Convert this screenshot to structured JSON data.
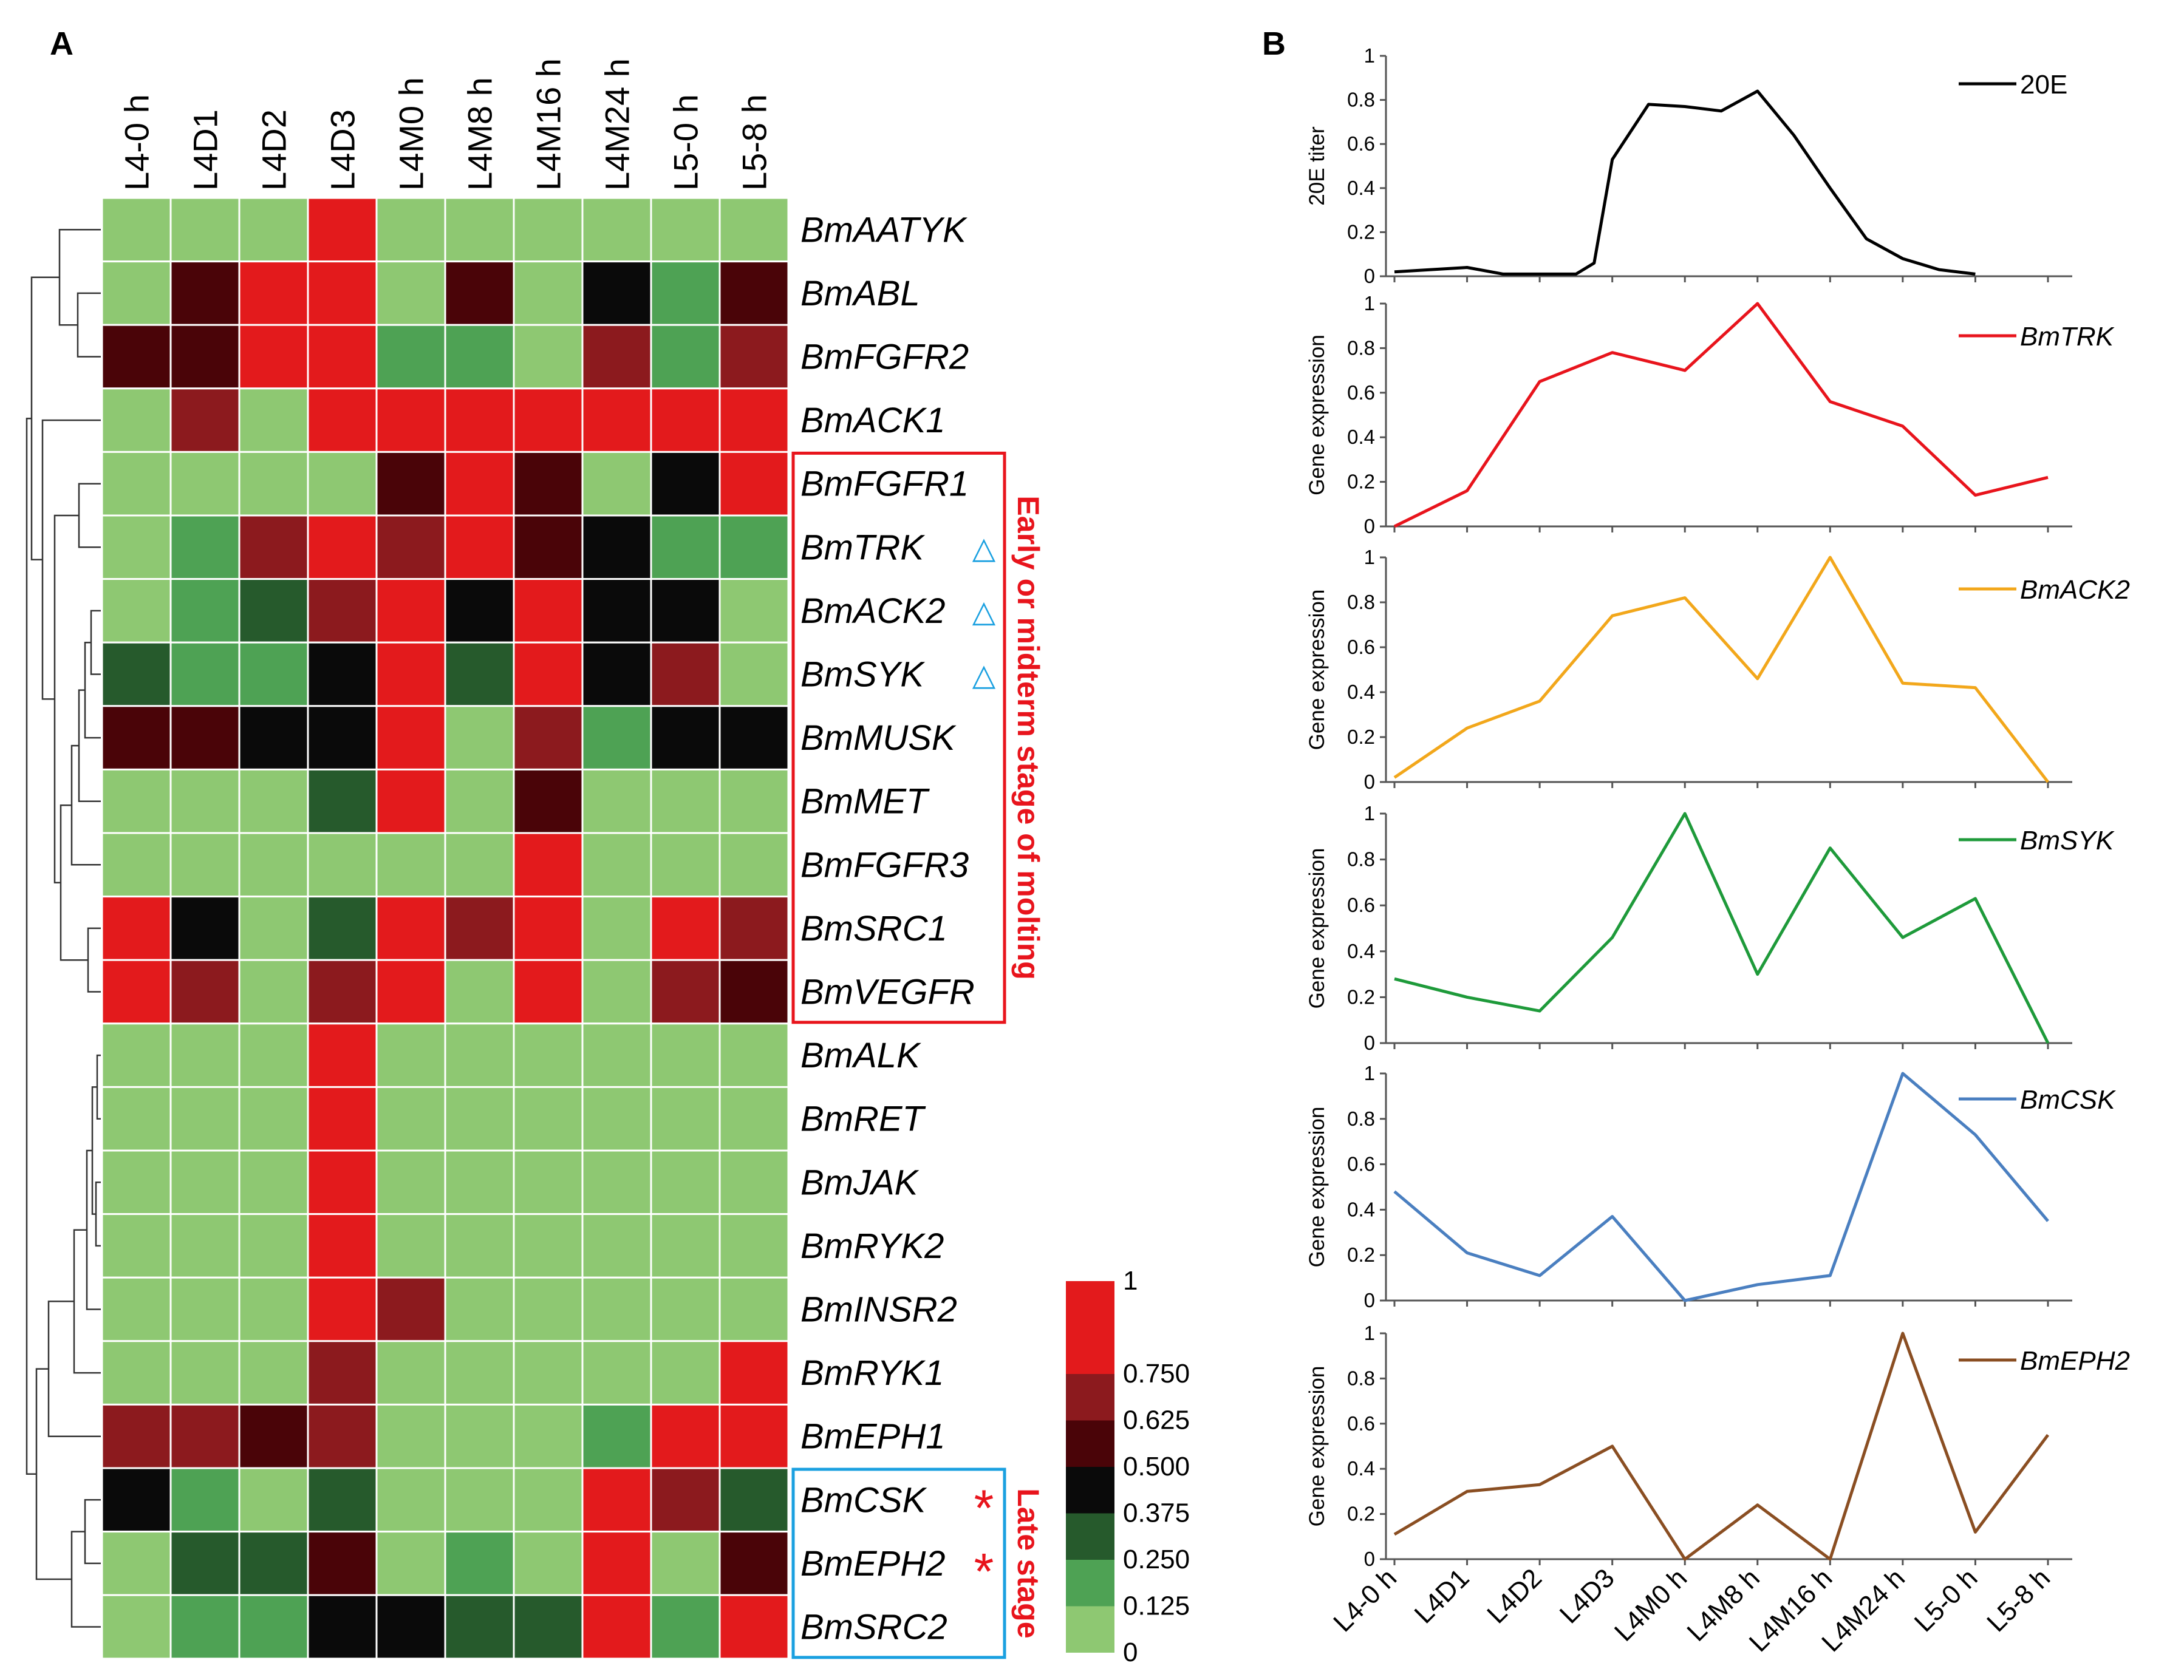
{
  "figure": {
    "panel_a_label": "A",
    "panel_b_label": "B"
  },
  "chart_data": [
    {
      "type": "heatmap",
      "title": "",
      "columns": [
        "L4-0 h",
        "L4D1",
        "L4D2",
        "L4D3",
        "L4M0 h",
        "L4M8 h",
        "L4M16 h",
        "L4M24 h",
        "L5-0 h",
        "L5-8 h"
      ],
      "rows": [
        "BmAATYK",
        "BmABL",
        "BmFGFR2",
        "BmACK1",
        "BmFGFR1",
        "BmTRK",
        "BmACK2",
        "BmSYK",
        "BmMUSK",
        "BmMET",
        "BmFGFR3",
        "BmSRC1",
        "BmVEGFR",
        "BmALK",
        "BmRET",
        "BmJAK",
        "BmRYK2",
        "BmINSR2",
        "BmRYK1",
        "BmEPH1",
        "BmCSK",
        "BmEPH2",
        "BmSRC2"
      ],
      "values": [
        [
          0.0,
          0.0,
          0.0,
          1.0,
          0.0,
          0.0,
          0.0,
          0.0,
          0.0,
          0.0
        ],
        [
          0.0,
          0.6,
          1.0,
          1.0,
          0.0,
          0.6,
          0.0,
          0.5,
          0.15,
          0.6
        ],
        [
          0.6,
          0.6,
          1.0,
          1.0,
          0.15,
          0.15,
          0.0,
          0.7,
          0.15,
          0.7
        ],
        [
          0.0,
          0.7,
          0.0,
          1.0,
          1.0,
          1.0,
          1.0,
          1.0,
          1.0,
          1.0
        ],
        [
          0.0,
          0.0,
          0.0,
          0.0,
          0.6,
          1.0,
          0.6,
          0.0,
          0.5,
          1.0
        ],
        [
          0.0,
          0.15,
          0.7,
          1.0,
          0.7,
          1.0,
          0.6,
          0.5,
          0.15,
          0.15
        ],
        [
          0.0,
          0.15,
          0.3,
          0.7,
          1.0,
          0.5,
          1.0,
          0.5,
          0.5,
          0.0
        ],
        [
          0.3,
          0.15,
          0.15,
          0.5,
          1.0,
          0.3,
          1.0,
          0.5,
          0.7,
          0.0
        ],
        [
          0.6,
          0.6,
          0.5,
          0.5,
          1.0,
          0.0,
          0.7,
          0.15,
          0.5,
          0.5
        ],
        [
          0.0,
          0.0,
          0.0,
          0.3,
          1.0,
          0.0,
          0.6,
          0.0,
          0.0,
          0.0
        ],
        [
          0.0,
          0.0,
          0.0,
          0.0,
          0.0,
          0.0,
          1.0,
          0.0,
          0.0,
          0.0
        ],
        [
          1.0,
          0.5,
          0.0,
          0.3,
          1.0,
          0.7,
          1.0,
          0.0,
          1.0,
          0.7
        ],
        [
          1.0,
          0.7,
          0.0,
          0.7,
          1.0,
          0.0,
          1.0,
          0.0,
          0.7,
          0.6
        ],
        [
          0.0,
          0.0,
          0.0,
          1.0,
          0.0,
          0.0,
          0.0,
          0.0,
          0.0,
          0.0
        ],
        [
          0.0,
          0.0,
          0.0,
          1.0,
          0.0,
          0.0,
          0.0,
          0.0,
          0.0,
          0.0
        ],
        [
          0.0,
          0.0,
          0.0,
          1.0,
          0.0,
          0.0,
          0.0,
          0.0,
          0.0,
          0.0
        ],
        [
          0.0,
          0.0,
          0.0,
          1.0,
          0.0,
          0.0,
          0.0,
          0.0,
          0.0,
          0.0
        ],
        [
          0.0,
          0.0,
          0.0,
          1.0,
          0.7,
          0.0,
          0.0,
          0.0,
          0.0,
          0.0
        ],
        [
          0.0,
          0.0,
          0.0,
          0.7,
          0.0,
          0.0,
          0.0,
          0.0,
          0.0,
          1.0
        ],
        [
          0.7,
          0.7,
          0.6,
          0.7,
          0.0,
          0.0,
          0.0,
          0.15,
          1.0,
          1.0
        ],
        [
          0.5,
          0.15,
          0.0,
          0.3,
          0.0,
          0.0,
          0.0,
          1.0,
          0.7,
          0.3
        ],
        [
          0.0,
          0.3,
          0.3,
          0.6,
          0.0,
          0.15,
          0.0,
          1.0,
          0.0,
          0.6
        ],
        [
          0.0,
          0.15,
          0.15,
          0.5,
          0.5,
          0.3,
          0.3,
          1.0,
          0.15,
          1.0
        ]
      ],
      "color_scale": {
        "ticks": [
          "1",
          "0.750",
          "0.625",
          "0.500",
          "0.375",
          "0.250",
          "0.125",
          "0"
        ],
        "bins": [
          {
            "min": 0.0,
            "max": 0.125,
            "color": "#8ec872"
          },
          {
            "min": 0.125,
            "max": 0.25,
            "color": "#4ea254"
          },
          {
            "min": 0.25,
            "max": 0.375,
            "color": "#265a2c"
          },
          {
            "min": 0.375,
            "max": 0.5,
            "color": "#0a0a0a"
          },
          {
            "min": 0.5,
            "max": 0.625,
            "color": "#4a0408"
          },
          {
            "min": 0.625,
            "max": 0.75,
            "color": "#8c1a1e"
          },
          {
            "min": 0.75,
            "max": 1.0,
            "color": "#e31a1c"
          }
        ]
      },
      "annotations": {
        "triangle_marker": "△",
        "star_marker": "*",
        "triangle_rows": [
          "BmTRK",
          "BmACK2",
          "BmSYK"
        ],
        "star_rows": [
          "BmCSK",
          "BmEPH2"
        ],
        "groups": [
          {
            "label": "Early or midterm stage of molting",
            "first_row": "BmFGFR1",
            "last_row": "BmVEGFR",
            "color": "#e8141c"
          },
          {
            "label": "Late stage",
            "first_row": "BmCSK",
            "last_row": "BmSRC2",
            "color": "#1aa0e0",
            "label_color": "#e8141c"
          }
        ]
      }
    },
    {
      "type": "line",
      "x": [
        "L4-0 h",
        "L4D1",
        "L4D2",
        "L4D3",
        "L4M0 h",
        "L4M8 h",
        "L4M16 h",
        "L4M24 h",
        "L5-0 h",
        "L5-8 h"
      ],
      "xlabel": "",
      "subplots": [
        {
          "ylabel": "20E titer",
          "ylim": [
            0,
            1
          ],
          "yticks": [
            "0",
            "0.2",
            "0.4",
            "0.6",
            "0.8",
            "1"
          ],
          "series": [
            {
              "name": "20E",
              "italic": false,
              "color": "#000000",
              "x": [
                0.0,
                0.5,
                1.0,
                1.5,
                2.0,
                2.5,
                2.75,
                3.0,
                3.5,
                4.0,
                4.5,
                5.0,
                5.5,
                6.0,
                6.5,
                7.0,
                7.5,
                8.0
              ],
              "y": [
                0.02,
                0.03,
                0.04,
                0.01,
                0.01,
                0.01,
                0.06,
                0.53,
                0.78,
                0.77,
                0.75,
                0.84,
                0.64,
                0.4,
                0.17,
                0.08,
                0.03,
                0.01
              ]
            }
          ]
        },
        {
          "ylabel": "Gene expression",
          "ylim": [
            0,
            1
          ],
          "yticks": [
            "0",
            "0.2",
            "0.4",
            "0.6",
            "0.8",
            "1"
          ],
          "series": [
            {
              "name": "BmTRK",
              "italic": true,
              "color": "#e8141c",
              "x": [
                0,
                1,
                2,
                3,
                4,
                5,
                6,
                7,
                8,
                9
              ],
              "y": [
                0.0,
                0.16,
                0.65,
                0.78,
                0.7,
                1.0,
                0.56,
                0.45,
                0.14,
                0.22
              ]
            }
          ]
        },
        {
          "ylabel": "Gene expression",
          "ylim": [
            0,
            1
          ],
          "yticks": [
            "0",
            "0.2",
            "0.4",
            "0.6",
            "0.8",
            "1"
          ],
          "series": [
            {
              "name": "BmACK2",
              "italic": true,
              "color": "#f2a71b",
              "x": [
                0,
                1,
                2,
                3,
                4,
                5,
                6,
                7,
                8,
                9
              ],
              "y": [
                0.02,
                0.24,
                0.36,
                0.74,
                0.82,
                0.46,
                1.0,
                0.44,
                0.42,
                0.0
              ]
            }
          ]
        },
        {
          "ylabel": "Gene expression",
          "ylim": [
            0,
            1
          ],
          "yticks": [
            "0",
            "0.2",
            "0.4",
            "0.6",
            "0.8",
            "1"
          ],
          "series": [
            {
              "name": "BmSYK",
              "italic": true,
              "color": "#1e9a3a",
              "x": [
                0,
                1,
                2,
                3,
                4,
                5,
                6,
                7,
                8,
                9
              ],
              "y": [
                0.28,
                0.2,
                0.14,
                0.46,
                1.0,
                0.3,
                0.85,
                0.46,
                0.63,
                0.0
              ]
            }
          ]
        },
        {
          "ylabel": "Gene expression",
          "ylim": [
            0,
            1
          ],
          "yticks": [
            "0",
            "0.2",
            "0.4",
            "0.6",
            "0.8",
            "1"
          ],
          "series": [
            {
              "name": "BmCSK",
              "italic": true,
              "color": "#4a7fc0",
              "x": [
                0,
                1,
                2,
                3,
                4,
                5,
                6,
                7,
                8,
                9
              ],
              "y": [
                0.48,
                0.21,
                0.11,
                0.37,
                0.0,
                0.07,
                0.11,
                1.0,
                0.73,
                0.35
              ]
            }
          ]
        },
        {
          "ylabel": "Gene expression",
          "ylim": [
            0,
            1
          ],
          "yticks": [
            "0",
            "0.2",
            "0.4",
            "0.6",
            "0.8",
            "1"
          ],
          "series": [
            {
              "name": "BmEPH2",
              "italic": true,
              "color": "#8a4e22",
              "x": [
                0,
                1,
                2,
                3,
                4,
                5,
                6,
                7,
                8,
                9
              ],
              "y": [
                0.11,
                0.3,
                0.33,
                0.5,
                0.0,
                0.24,
                0.0,
                1.0,
                0.12,
                0.55
              ]
            }
          ]
        }
      ]
    }
  ]
}
